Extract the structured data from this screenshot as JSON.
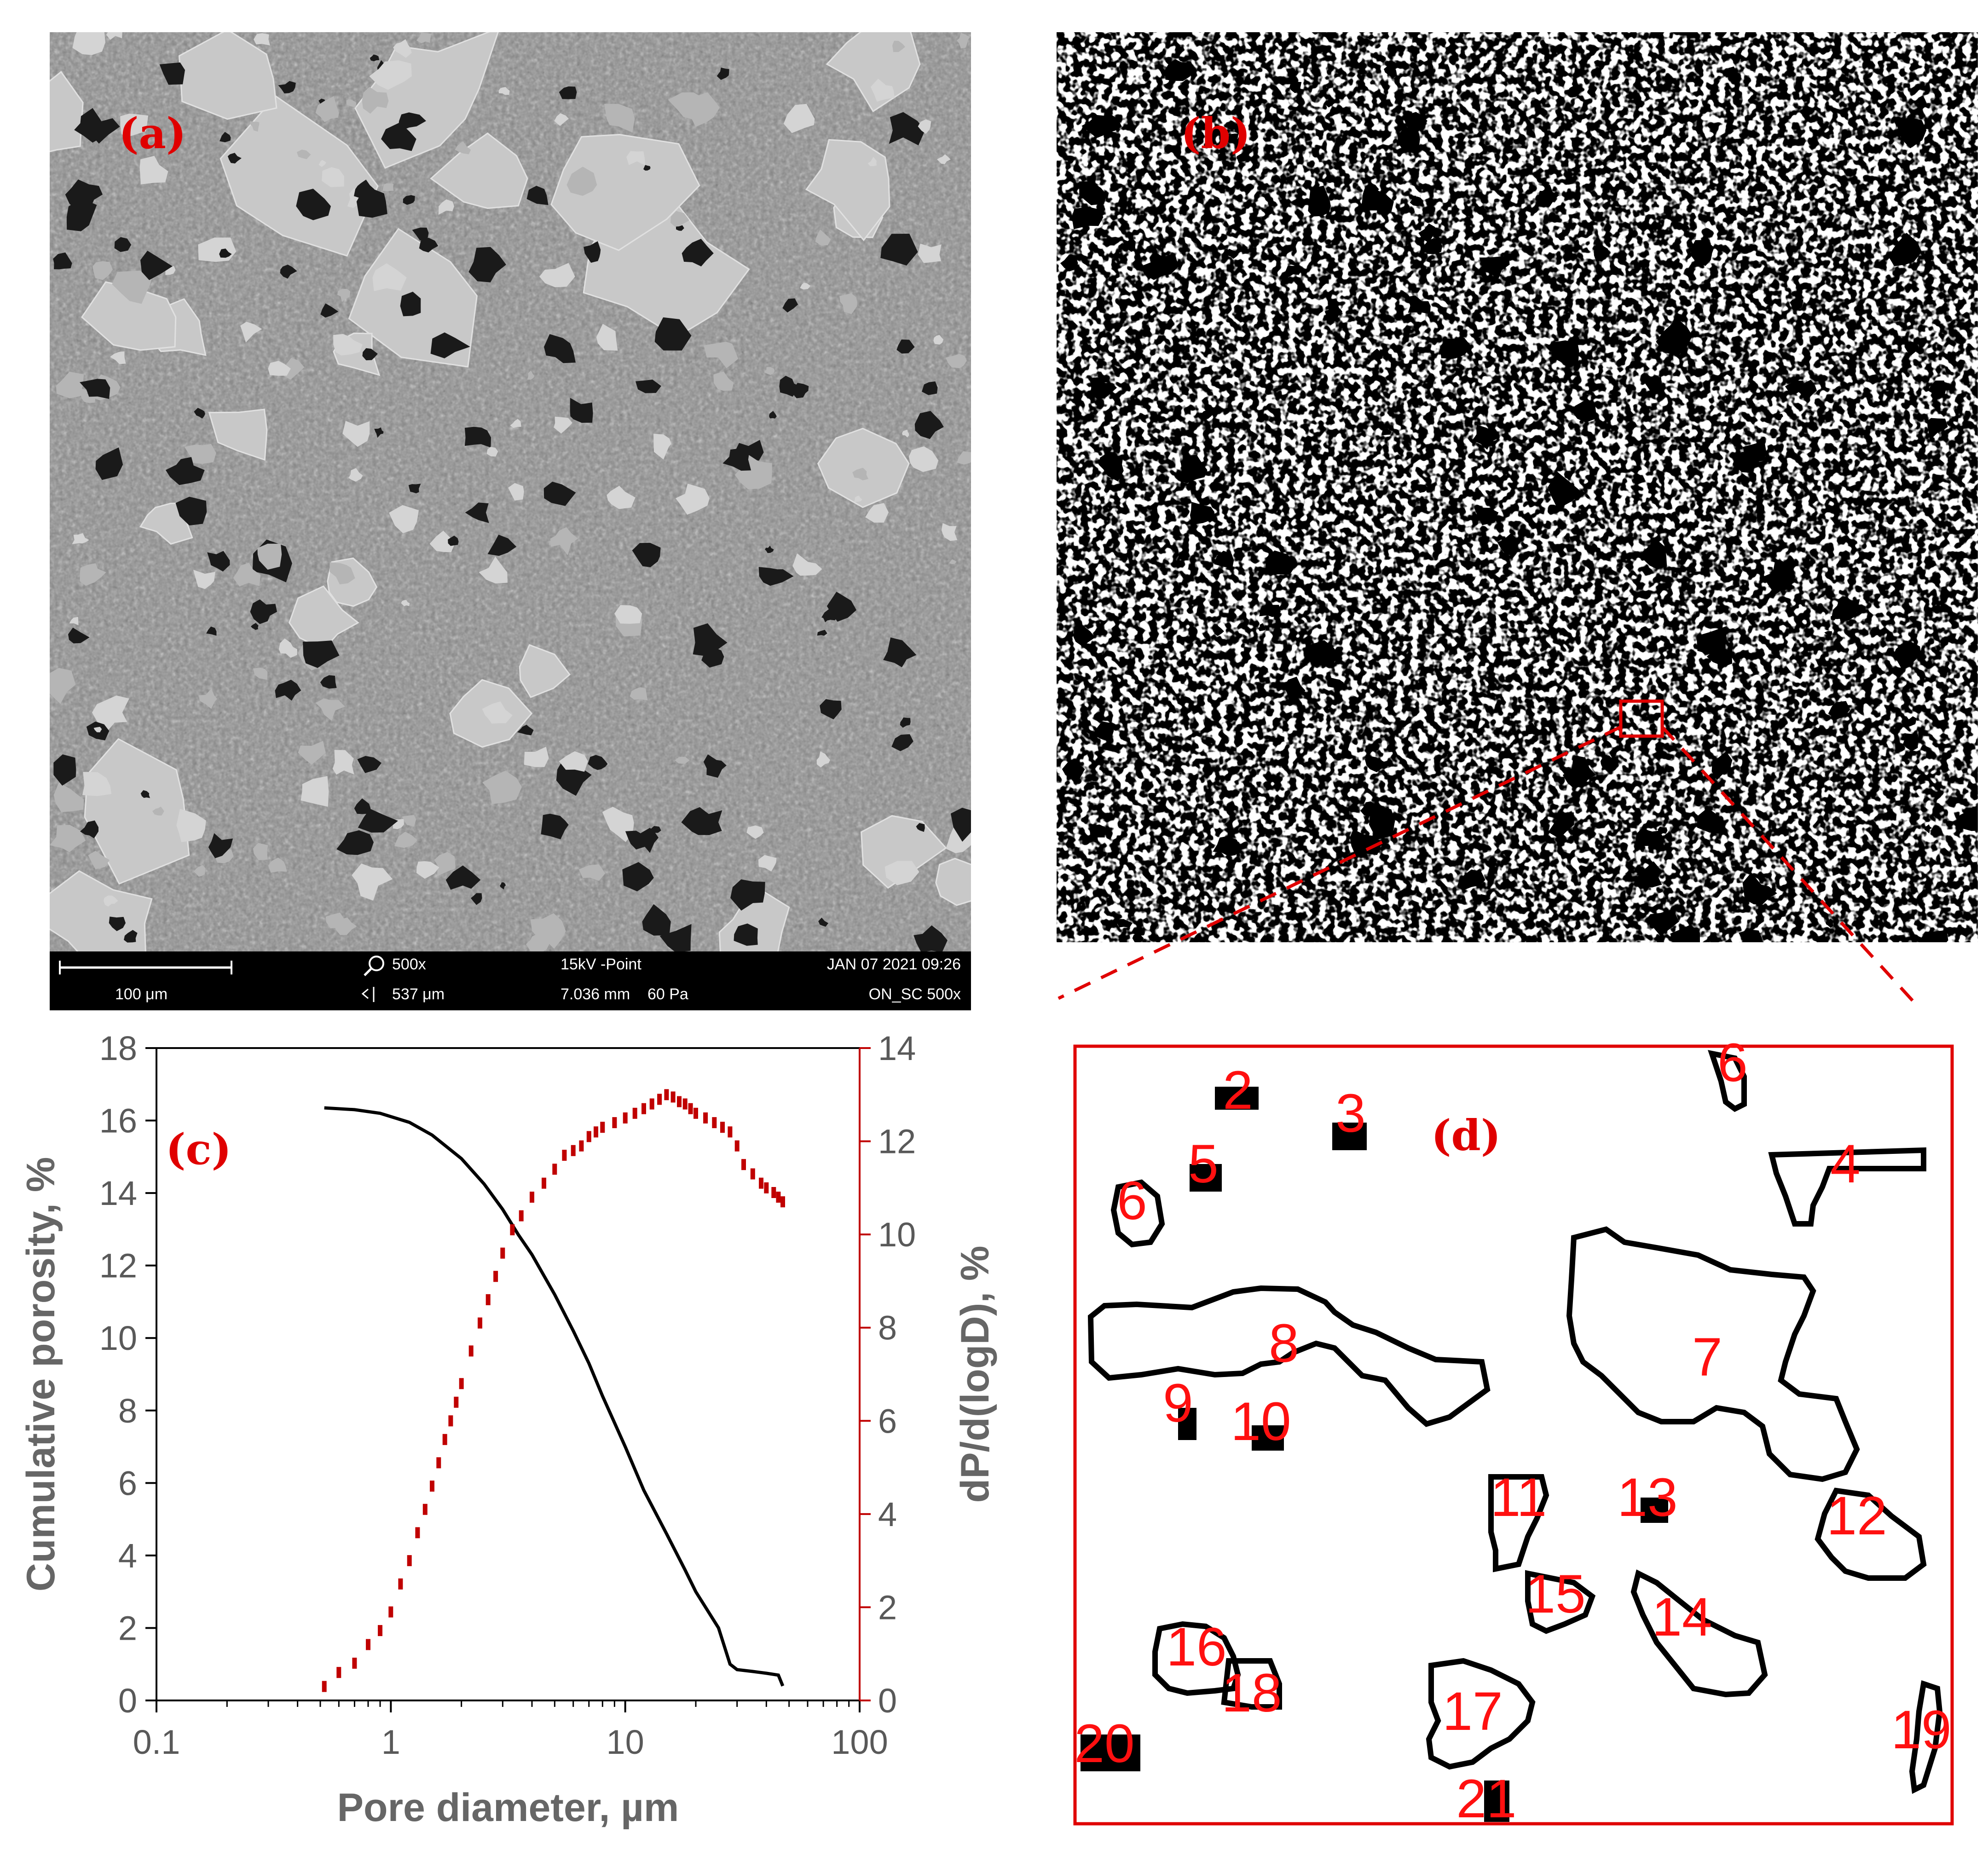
{
  "panels": {
    "a": {
      "label": "(a)"
    },
    "b": {
      "label": "(b)"
    },
    "c": {
      "label": "(c)"
    },
    "d": {
      "label": "(d)"
    }
  },
  "sem_info": {
    "scale_bar": "100 μm",
    "magnification": "500x",
    "field_width": "537 μm",
    "mode": "15kV -Point",
    "distance_pressure": "7.036 mm    60 Pa",
    "datetime": "JAN 07 2021 09:26",
    "sample": "ON_SC 500x"
  },
  "colors": {
    "cumulative": "#000000",
    "differential": "#c00000",
    "label_red": "#e00000",
    "frame_red": "#e00000"
  },
  "icons": [
    "zoom-magnifier-icon",
    "field-width-icon"
  ],
  "pore_labels": [
    "2",
    "3",
    "4",
    "5",
    "6",
    "7",
    "8",
    "9",
    "10",
    "11",
    "12",
    "13",
    "14",
    "15",
    "16",
    "17",
    "18",
    "19",
    "20",
    "21",
    "6"
  ],
  "chart_data": {
    "type": "line",
    "xlabel": "Pore diameter, µm",
    "ylabel": "Cumulative porosity, %",
    "y2label": "dP/d(logD), %",
    "xscale": "log",
    "xlim": [
      0.1,
      100
    ],
    "ylim": [
      0,
      18
    ],
    "y2lim": [
      0,
      14
    ],
    "x_ticks": [
      "0.1",
      "1",
      "10",
      "100"
    ],
    "y_ticks": [
      "0",
      "2",
      "4",
      "6",
      "8",
      "10",
      "12",
      "14",
      "16",
      "18"
    ],
    "y2_ticks": [
      "0",
      "2",
      "4",
      "6",
      "8",
      "10",
      "12",
      "14"
    ],
    "grid": false,
    "series": [
      {
        "axis": "left",
        "style": "line",
        "x": [
          0.52,
          0.7,
          0.9,
          1.2,
          1.5,
          2.0,
          2.5,
          3.0,
          3.5,
          4.0,
          5.0,
          6.0,
          7.0,
          8.0,
          10.0,
          12.0,
          15.0,
          18.0,
          20.0,
          25.0,
          28.0,
          30.0,
          35.0,
          40.0,
          45.0,
          47.0
        ],
        "values": [
          16.35,
          16.3,
          16.2,
          15.95,
          15.6,
          14.95,
          14.25,
          13.55,
          12.85,
          12.3,
          11.2,
          10.2,
          9.3,
          8.4,
          7.0,
          5.8,
          4.6,
          3.6,
          3.0,
          2.0,
          1.0,
          0.85,
          0.8,
          0.75,
          0.7,
          0.4
        ]
      },
      {
        "axis": "right",
        "style": "points",
        "x": [
          0.52,
          0.6,
          0.7,
          0.8,
          0.9,
          1.0,
          1.1,
          1.2,
          1.3,
          1.4,
          1.5,
          1.6,
          1.7,
          1.8,
          1.9,
          2.0,
          2.2,
          2.4,
          2.6,
          2.8,
          3.0,
          3.3,
          3.6,
          4.0,
          4.5,
          5.0,
          5.5,
          6.0,
          6.5,
          7.0,
          7.5,
          8.0,
          9.0,
          10.0,
          11.0,
          12.0,
          13.0,
          14.0,
          15.0,
          16.0,
          17.0,
          18.0,
          19.0,
          20.0,
          22.0,
          24.0,
          26.0,
          28.0,
          30.0,
          32.0,
          35.0,
          38.0,
          40.0,
          43.0,
          45.0,
          47.0
        ],
        "values": [
          0.3,
          0.6,
          0.8,
          1.2,
          1.5,
          1.9,
          2.5,
          3.0,
          3.6,
          4.1,
          4.6,
          5.1,
          5.6,
          6.0,
          6.4,
          6.8,
          7.5,
          8.1,
          8.6,
          9.1,
          9.6,
          10.1,
          10.4,
          10.8,
          11.1,
          11.4,
          11.7,
          11.8,
          11.9,
          12.1,
          12.2,
          12.3,
          12.4,
          12.5,
          12.6,
          12.7,
          12.8,
          12.9,
          13.0,
          12.95,
          12.85,
          12.8,
          12.7,
          12.6,
          12.5,
          12.4,
          12.3,
          12.2,
          11.9,
          11.5,
          11.3,
          11.1,
          11.0,
          10.9,
          10.8,
          10.7
        ]
      }
    ]
  }
}
